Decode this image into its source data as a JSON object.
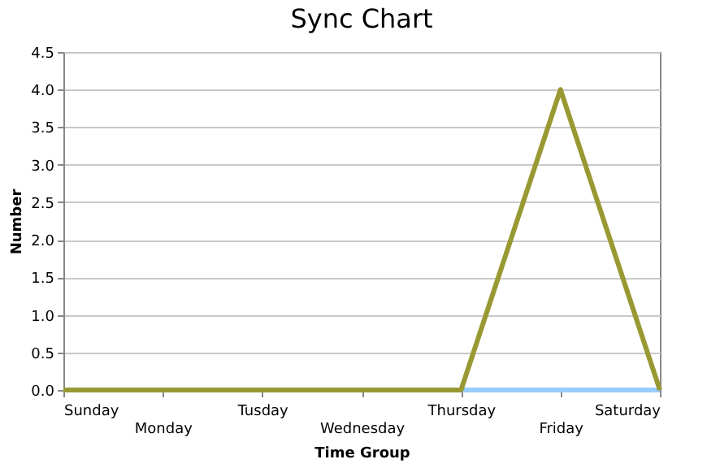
{
  "chart_data": {
    "type": "line",
    "title": "Sync Chart",
    "xlabel": "Time Group",
    "ylabel": "Number",
    "categories": [
      "Sunday",
      "Monday",
      "Tusday",
      "Wednesday",
      "Thursday",
      "Friday",
      "Saturday"
    ],
    "series": [
      {
        "color": "#99ccff",
        "values": [
          null,
          null,
          null,
          null,
          0,
          0,
          0
        ]
      },
      {
        "color": "#999933",
        "values": [
          0,
          0,
          0,
          0,
          0,
          4,
          0
        ]
      }
    ],
    "ylim": [
      0,
      4.5
    ],
    "yticks": [
      {
        "value": 0,
        "label": "0.0"
      },
      {
        "value": 0.5,
        "label": "0.5"
      },
      {
        "value": 1,
        "label": "1.0"
      },
      {
        "value": 1.5,
        "label": "1.5"
      },
      {
        "value": 2,
        "label": "2.0"
      },
      {
        "value": 2.5,
        "label": "2.5"
      },
      {
        "value": 3,
        "label": "3.0"
      },
      {
        "value": 3.5,
        "label": "3.5"
      },
      {
        "value": 4,
        "label": "4.0"
      },
      {
        "value": 4.5,
        "label": "4.5"
      }
    ],
    "grid": "y",
    "marker": "none",
    "line_style": "solid"
  }
}
